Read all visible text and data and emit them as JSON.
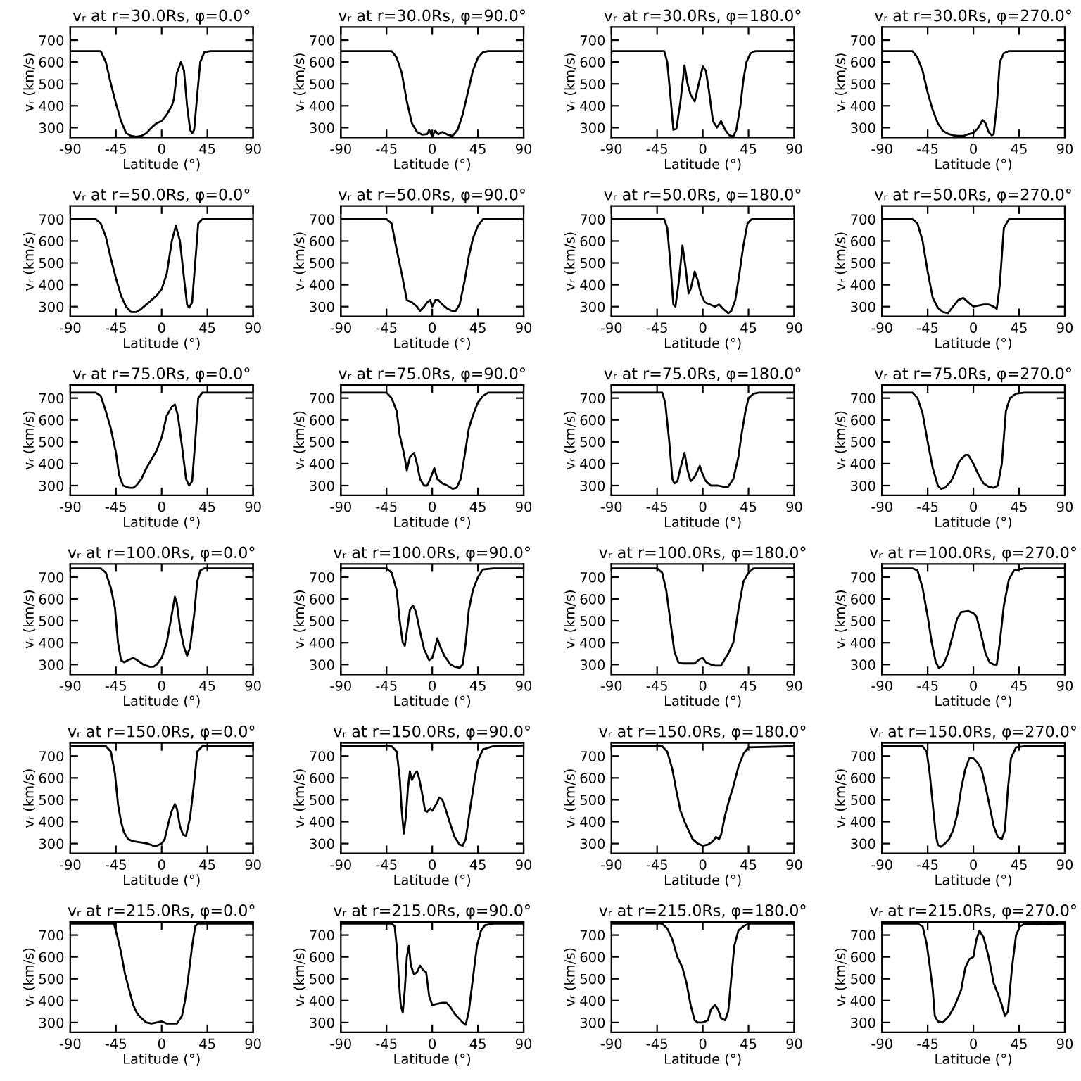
{
  "chart_data": [
    {
      "type": "line",
      "title": "vᵣ at r=30.0Rs, φ=0.0°",
      "xlabel": "Latitude (°)",
      "ylabel": "vᵣ (km/s)",
      "xlim": [
        -90,
        90
      ],
      "ylim": [
        255,
        760
      ],
      "xticks": [
        -90,
        -45,
        0,
        45,
        90
      ],
      "yticks": [
        300,
        400,
        500,
        600,
        700
      ],
      "x": [
        -90,
        -60,
        -55,
        -50,
        -45,
        -40,
        -35,
        -30,
        -25,
        -20,
        -15,
        -10,
        -5,
        0,
        5,
        10,
        12,
        15,
        19,
        22,
        25,
        28,
        30,
        32,
        35,
        38,
        42,
        48,
        90
      ],
      "series": [
        {
          "color": "#000000",
          "values": [
            650,
            650,
            600,
            500,
            410,
            330,
            275,
            262,
            258,
            262,
            275,
            300,
            320,
            330,
            360,
            400,
            430,
            550,
            600,
            560,
            400,
            290,
            275,
            290,
            450,
            600,
            645,
            650,
            650
          ]
        }
      ]
    },
    {
      "type": "line",
      "title": "vᵣ at r=30.0Rs, φ=90.0°",
      "xlabel": "Latitude (°)",
      "ylabel": "vᵣ (km/s)",
      "xlim": [
        -90,
        90
      ],
      "ylim": [
        255,
        760
      ],
      "xticks": [
        -90,
        -45,
        0,
        45,
        90
      ],
      "yticks": [
        300,
        400,
        500,
        600,
        700
      ],
      "x": [
        -90,
        -40,
        -35,
        -30,
        -25,
        -20,
        -15,
        -10,
        -5,
        -3,
        0,
        3,
        6,
        10,
        15,
        20,
        25,
        30,
        35,
        40,
        45,
        50,
        55,
        90
      ],
      "series": [
        {
          "color": "#000000",
          "values": [
            650,
            650,
            620,
            550,
            420,
            320,
            280,
            268,
            270,
            290,
            260,
            285,
            270,
            280,
            268,
            262,
            290,
            360,
            460,
            560,
            620,
            645,
            650,
            650
          ]
        }
      ]
    },
    {
      "type": "line",
      "title": "vᵣ at r=30.0Rs, φ=180.0°",
      "xlabel": "Latitude (°)",
      "ylabel": "vᵣ (km/s)",
      "xlim": [
        -90,
        90
      ],
      "ylim": [
        255,
        760
      ],
      "xticks": [
        -90,
        -45,
        0,
        45,
        90
      ],
      "yticks": [
        300,
        400,
        500,
        600,
        700
      ],
      "x": [
        -90,
        -38,
        -35,
        -32,
        -29,
        -26,
        -22,
        -18,
        -15,
        -12,
        -8,
        -5,
        0,
        3,
        6,
        10,
        14,
        18,
        22,
        26,
        30,
        33,
        37,
        40,
        43,
        47,
        52,
        90
      ],
      "series": [
        {
          "color": "#000000",
          "values": [
            650,
            650,
            600,
            450,
            290,
            295,
            420,
            585,
            500,
            450,
            420,
            480,
            580,
            560,
            470,
            330,
            300,
            330,
            290,
            265,
            260,
            290,
            400,
            520,
            600,
            640,
            650,
            650
          ]
        }
      ]
    },
    {
      "type": "line",
      "title": "vᵣ at r=30.0Rs, φ=270.0°",
      "xlabel": "Latitude (°)",
      "ylabel": "vᵣ (km/s)",
      "xlim": [
        -90,
        90
      ],
      "ylim": [
        255,
        760
      ],
      "xticks": [
        -90,
        -45,
        0,
        45,
        90
      ],
      "yticks": [
        300,
        400,
        500,
        600,
        700
      ],
      "x": [
        -90,
        -60,
        -55,
        -50,
        -45,
        -40,
        -35,
        -30,
        -25,
        -20,
        -15,
        -10,
        -5,
        0,
        5,
        9,
        12,
        15,
        18,
        20,
        23,
        26,
        30,
        35,
        90
      ],
      "series": [
        {
          "color": "#000000",
          "values": [
            650,
            650,
            620,
            560,
            460,
            380,
            320,
            285,
            272,
            265,
            262,
            262,
            270,
            275,
            300,
            335,
            320,
            280,
            265,
            270,
            400,
            600,
            640,
            650,
            650
          ]
        }
      ]
    },
    {
      "type": "line",
      "title": "vᵣ at r=50.0Rs, φ=0.0°",
      "xlabel": "Latitude (°)",
      "ylabel": "vᵣ (km/s)",
      "xlim": [
        -90,
        90
      ],
      "ylim": [
        255,
        760
      ],
      "xticks": [
        -90,
        -45,
        0,
        45,
        90
      ],
      "yticks": [
        300,
        400,
        500,
        600,
        700
      ],
      "x": [
        -90,
        -65,
        -60,
        -55,
        -50,
        -45,
        -40,
        -35,
        -30,
        -25,
        -20,
        -15,
        -10,
        -5,
        0,
        5,
        10,
        14,
        18,
        22,
        25,
        27,
        30,
        33,
        36,
        40,
        90
      ],
      "series": [
        {
          "color": "#000000",
          "values": [
            700,
            700,
            680,
            620,
            520,
            430,
            350,
            300,
            275,
            275,
            290,
            310,
            330,
            350,
            380,
            450,
            600,
            670,
            600,
            430,
            310,
            295,
            320,
            500,
            680,
            700,
            700
          ]
        }
      ]
    },
    {
      "type": "line",
      "title": "vᵣ at r=50.0Rs, φ=90.0°",
      "xlabel": "Latitude (°)",
      "ylabel": "vᵣ (km/s)",
      "xlim": [
        -90,
        90
      ],
      "ylim": [
        255,
        760
      ],
      "xticks": [
        -90,
        -45,
        0,
        45,
        90
      ],
      "yticks": [
        300,
        400,
        500,
        600,
        700
      ],
      "x": [
        -90,
        -45,
        -40,
        -35,
        -30,
        -25,
        -20,
        -15,
        -12,
        -8,
        -5,
        -2,
        0,
        3,
        6,
        10,
        15,
        20,
        23,
        27,
        32,
        36,
        40,
        45,
        50,
        90
      ],
      "series": [
        {
          "color": "#000000",
          "values": [
            700,
            700,
            680,
            560,
            450,
            330,
            320,
            300,
            280,
            300,
            320,
            330,
            300,
            330,
            330,
            310,
            290,
            280,
            280,
            310,
            420,
            530,
            610,
            670,
            700,
            700
          ]
        }
      ]
    },
    {
      "type": "line",
      "title": "vᵣ at r=50.0Rs, φ=180.0°",
      "xlabel": "Latitude (°)",
      "ylabel": "vᵣ (km/s)",
      "xlim": [
        -90,
        90
      ],
      "ylim": [
        255,
        760
      ],
      "xticks": [
        -90,
        -45,
        0,
        45,
        90
      ],
      "yticks": [
        300,
        400,
        500,
        600,
        700
      ],
      "x": [
        -90,
        -38,
        -35,
        -32,
        -29,
        -27,
        -24,
        -20,
        -17,
        -14,
        -12,
        -8,
        -5,
        -2,
        2,
        7,
        12,
        16,
        20,
        25,
        28,
        32,
        36,
        40,
        44,
        48,
        90
      ],
      "series": [
        {
          "color": "#000000",
          "values": [
            700,
            700,
            660,
            500,
            310,
            300,
            400,
            580,
            480,
            360,
            380,
            460,
            420,
            360,
            320,
            310,
            300,
            310,
            290,
            270,
            280,
            330,
            450,
            580,
            680,
            700,
            700
          ]
        }
      ]
    },
    {
      "type": "line",
      "title": "vᵣ at r=50.0Rs, φ=270.0°",
      "xlabel": "Latitude (°)",
      "ylabel": "vᵣ (km/s)",
      "xlim": [
        -90,
        90
      ],
      "ylim": [
        255,
        760
      ],
      "xticks": [
        -90,
        -45,
        0,
        45,
        90
      ],
      "yticks": [
        300,
        400,
        500,
        600,
        700
      ],
      "x": [
        -90,
        -60,
        -55,
        -50,
        -45,
        -40,
        -35,
        -30,
        -25,
        -20,
        -15,
        -10,
        -5,
        0,
        5,
        10,
        15,
        20,
        23,
        26,
        30,
        35,
        90
      ],
      "series": [
        {
          "color": "#000000",
          "values": [
            700,
            700,
            680,
            600,
            460,
            340,
            295,
            275,
            270,
            300,
            330,
            340,
            320,
            300,
            305,
            310,
            310,
            300,
            290,
            400,
            660,
            700,
            700
          ]
        }
      ]
    },
    {
      "type": "line",
      "title": "vᵣ at r=75.0Rs, φ=0.0°",
      "xlabel": "Latitude (°)",
      "ylabel": "vᵣ (km/s)",
      "xlim": [
        -90,
        90
      ],
      "ylim": [
        255,
        760
      ],
      "xticks": [
        -90,
        -45,
        0,
        45,
        90
      ],
      "yticks": [
        300,
        400,
        500,
        600,
        700
      ],
      "x": [
        -90,
        -65,
        -60,
        -55,
        -50,
        -45,
        -42,
        -38,
        -32,
        -28,
        -25,
        -20,
        -15,
        -10,
        -5,
        0,
        5,
        10,
        13,
        16,
        20,
        24,
        27,
        30,
        33,
        36,
        40,
        90
      ],
      "series": [
        {
          "color": "#000000",
          "values": [
            725,
            725,
            710,
            640,
            560,
            450,
            350,
            300,
            290,
            290,
            300,
            330,
            380,
            420,
            460,
            520,
            620,
            660,
            670,
            620,
            480,
            330,
            300,
            320,
            500,
            700,
            725,
            725
          ]
        }
      ]
    },
    {
      "type": "line",
      "title": "vᵣ at r=75.0Rs, φ=90.0°",
      "xlabel": "Latitude (°)",
      "ylabel": "vᵣ (km/s)",
      "xlim": [
        -90,
        90
      ],
      "ylim": [
        255,
        760
      ],
      "xticks": [
        -90,
        -45,
        0,
        45,
        90
      ],
      "yticks": [
        300,
        400,
        500,
        600,
        700
      ],
      "x": [
        -90,
        -45,
        -40,
        -35,
        -32,
        -28,
        -25,
        -22,
        -18,
        -15,
        -12,
        -8,
        -5,
        -2,
        2,
        5,
        10,
        15,
        20,
        24,
        28,
        32,
        36,
        40,
        45,
        50,
        55,
        90
      ],
      "series": [
        {
          "color": "#000000",
          "values": [
            725,
            725,
            700,
            640,
            530,
            450,
            370,
            430,
            450,
            400,
            330,
            300,
            300,
            330,
            380,
            330,
            310,
            300,
            285,
            290,
            330,
            440,
            560,
            620,
            680,
            710,
            725,
            725
          ]
        }
      ]
    },
    {
      "type": "line",
      "title": "vᵣ at r=75.0Rs, φ=180.0°",
      "xlabel": "Latitude (°)",
      "ylabel": "vᵣ (km/s)",
      "xlim": [
        -90,
        90
      ],
      "ylim": [
        255,
        760
      ],
      "xticks": [
        -90,
        -45,
        0,
        45,
        90
      ],
      "yticks": [
        300,
        400,
        500,
        600,
        700
      ],
      "x": [
        -90,
        -40,
        -37,
        -33,
        -30,
        -28,
        -25,
        -22,
        -18,
        -15,
        -12,
        -8,
        -5,
        -3,
        0,
        3,
        8,
        15,
        20,
        25,
        30,
        35,
        38,
        42,
        45,
        50,
        55,
        90
      ],
      "series": [
        {
          "color": "#000000",
          "values": [
            725,
            725,
            680,
            500,
            330,
            310,
            320,
            380,
            450,
            370,
            320,
            340,
            370,
            390,
            350,
            320,
            300,
            300,
            295,
            295,
            330,
            430,
            530,
            640,
            700,
            720,
            725,
            725
          ]
        }
      ]
    },
    {
      "type": "line",
      "title": "vᵣ at r=75.0Rs, φ=270.0°",
      "xlabel": "Latitude (°)",
      "ylabel": "vᵣ (km/s)",
      "xlim": [
        -90,
        90
      ],
      "ylim": [
        255,
        760
      ],
      "xticks": [
        -90,
        -45,
        0,
        45,
        90
      ],
      "yticks": [
        300,
        400,
        500,
        600,
        700
      ],
      "x": [
        -90,
        -60,
        -55,
        -50,
        -45,
        -40,
        -35,
        -32,
        -28,
        -22,
        -18,
        -14,
        -8,
        -5,
        0,
        5,
        10,
        15,
        20,
        24,
        28,
        32,
        36,
        42,
        50,
        90
      ],
      "series": [
        {
          "color": "#000000",
          "values": [
            725,
            725,
            700,
            630,
            500,
            380,
            300,
            285,
            290,
            320,
            360,
            410,
            440,
            440,
            400,
            350,
            310,
            295,
            290,
            300,
            400,
            640,
            700,
            720,
            725,
            725
          ]
        }
      ]
    },
    {
      "type": "line",
      "title": "vᵣ at r=100.0Rs, φ=0.0°",
      "xlabel": "Latitude (°)",
      "ylabel": "vᵣ (km/s)",
      "xlim": [
        -90,
        90
      ],
      "ylim": [
        255,
        760
      ],
      "xticks": [
        -90,
        -45,
        0,
        45,
        90
      ],
      "yticks": [
        300,
        400,
        500,
        600,
        700
      ],
      "x": [
        -90,
        -60,
        -55,
        -50,
        -46,
        -43,
        -40,
        -37,
        -33,
        -28,
        -24,
        -18,
        -12,
        -8,
        -5,
        0,
        5,
        10,
        13,
        15,
        18,
        22,
        25,
        28,
        32,
        35,
        38,
        42,
        90
      ],
      "series": [
        {
          "color": "#000000",
          "values": [
            740,
            740,
            720,
            650,
            560,
            400,
            320,
            310,
            320,
            330,
            320,
            300,
            290,
            290,
            300,
            330,
            400,
            530,
            610,
            580,
            470,
            380,
            340,
            380,
            530,
            680,
            730,
            740,
            740
          ]
        }
      ]
    },
    {
      "type": "line",
      "title": "vᵣ at r=100.0Rs, φ=90.0°",
      "xlabel": "Latitude (°)",
      "ylabel": "vᵣ (km/s)",
      "xlim": [
        -90,
        90
      ],
      "ylim": [
        255,
        760
      ],
      "xticks": [
        -90,
        -45,
        0,
        45,
        90
      ],
      "yticks": [
        300,
        400,
        500,
        600,
        700
      ],
      "x": [
        -90,
        -45,
        -40,
        -35,
        -32,
        -29,
        -27,
        -25,
        -22,
        -19,
        -16,
        -12,
        -8,
        -3,
        0,
        3,
        5,
        8,
        12,
        18,
        22,
        27,
        30,
        33,
        36,
        40,
        45,
        50,
        60,
        90
      ],
      "series": [
        {
          "color": "#000000",
          "values": [
            740,
            740,
            720,
            640,
            500,
            400,
            385,
            450,
            550,
            570,
            540,
            450,
            370,
            320,
            330,
            380,
            420,
            380,
            340,
            300,
            290,
            285,
            300,
            400,
            550,
            640,
            700,
            735,
            740,
            740
          ]
        }
      ]
    },
    {
      "type": "line",
      "title": "vᵣ at r=100.0Rs, φ=180.0°",
      "xlabel": "Latitude (°)",
      "ylabel": "vᵣ (km/s)",
      "xlim": [
        -90,
        90
      ],
      "ylim": [
        255,
        760
      ],
      "xticks": [
        -90,
        -45,
        0,
        45,
        90
      ],
      "yticks": [
        300,
        400,
        500,
        600,
        700
      ],
      "x": [
        -90,
        -45,
        -40,
        -36,
        -32,
        -28,
        -24,
        -20,
        -12,
        -8,
        -3,
        0,
        3,
        8,
        12,
        18,
        21,
        25,
        30,
        35,
        40,
        45,
        50,
        90
      ],
      "series": [
        {
          "color": "#000000",
          "values": [
            740,
            740,
            720,
            640,
            500,
            360,
            310,
            305,
            305,
            305,
            325,
            330,
            310,
            300,
            295,
            295,
            320,
            350,
            400,
            550,
            680,
            720,
            740,
            740
          ]
        }
      ]
    },
    {
      "type": "line",
      "title": "vᵣ at r=100.0Rs, φ=270.0°",
      "xlabel": "Latitude (°)",
      "ylabel": "vᵣ (km/s)",
      "xlim": [
        -90,
        90
      ],
      "ylim": [
        255,
        760
      ],
      "xticks": [
        -90,
        -45,
        0,
        45,
        90
      ],
      "yticks": [
        300,
        400,
        500,
        600,
        700
      ],
      "x": [
        -90,
        -60,
        -55,
        -50,
        -45,
        -41,
        -37,
        -34,
        -30,
        -25,
        -20,
        -16,
        -12,
        -5,
        0,
        3,
        7,
        12,
        16,
        20,
        23,
        26,
        30,
        35,
        40,
        50,
        90
      ],
      "series": [
        {
          "color": "#000000",
          "values": [
            740,
            740,
            730,
            650,
            520,
            400,
            310,
            285,
            295,
            350,
            440,
            510,
            540,
            545,
            535,
            520,
            450,
            350,
            310,
            300,
            300,
            400,
            570,
            690,
            730,
            740,
            740
          ]
        }
      ]
    },
    {
      "type": "line",
      "title": "vᵣ at r=150.0Rs, φ=0.0°",
      "xlabel": "Latitude (°)",
      "ylabel": "vᵣ (km/s)",
      "xlim": [
        -90,
        90
      ],
      "ylim": [
        255,
        760
      ],
      "xticks": [
        -90,
        -45,
        0,
        45,
        90
      ],
      "yticks": [
        300,
        400,
        500,
        600,
        700
      ],
      "x": [
        -90,
        -55,
        -50,
        -46,
        -43,
        -40,
        -37,
        -33,
        -28,
        -20,
        -14,
        -8,
        -5,
        0,
        3,
        7,
        10,
        13,
        15,
        18,
        21,
        24,
        28,
        32,
        35,
        40,
        90
      ],
      "series": [
        {
          "color": "#000000",
          "values": [
            745,
            745,
            720,
            620,
            480,
            400,
            350,
            320,
            310,
            305,
            300,
            290,
            290,
            300,
            320,
            400,
            450,
            480,
            460,
            380,
            340,
            335,
            420,
            580,
            720,
            745,
            745
          ]
        }
      ]
    },
    {
      "type": "line",
      "title": "vᵣ at r=150.0Rs, φ=90.0°",
      "xlabel": "Latitude (°)",
      "ylabel": "vᵣ (km/s)",
      "xlim": [
        -90,
        90
      ],
      "ylim": [
        255,
        760
      ],
      "xticks": [
        -90,
        -45,
        0,
        45,
        90
      ],
      "yticks": [
        300,
        400,
        500,
        600,
        700
      ],
      "x": [
        -90,
        -40,
        -35,
        -32,
        -30,
        -28,
        -26,
        -24,
        -22,
        -20,
        -17,
        -15,
        -13,
        -10,
        -7,
        -5,
        -2,
        0,
        4,
        7,
        10,
        13,
        17,
        22,
        27,
        30,
        33,
        37,
        42,
        45,
        50,
        60,
        90
      ],
      "series": [
        {
          "color": "#000000",
          "values": [
            745,
            745,
            720,
            600,
            450,
            345,
            420,
            550,
            630,
            590,
            620,
            630,
            600,
            530,
            450,
            445,
            460,
            450,
            480,
            510,
            500,
            460,
            400,
            330,
            295,
            290,
            320,
            450,
            600,
            680,
            730,
            745,
            748
          ]
        }
      ]
    },
    {
      "type": "line",
      "title": "vᵣ at r=150.0Rs, φ=180.0°",
      "xlabel": "Latitude (°)",
      "ylabel": "vᵣ (km/s)",
      "xlim": [
        -90,
        90
      ],
      "ylim": [
        255,
        760
      ],
      "xticks": [
        -90,
        -45,
        0,
        45,
        90
      ],
      "yticks": [
        300,
        400,
        500,
        600,
        700
      ],
      "x": [
        -90,
        -40,
        -35,
        -30,
        -26,
        -22,
        -18,
        -14,
        -10,
        -5,
        0,
        5,
        10,
        13,
        16,
        18,
        22,
        26,
        30,
        35,
        40,
        45,
        90
      ],
      "series": [
        {
          "color": "#000000",
          "values": [
            745,
            745,
            720,
            640,
            540,
            450,
            400,
            360,
            320,
            300,
            290,
            295,
            310,
            330,
            320,
            340,
            430,
            500,
            560,
            650,
            710,
            740,
            745
          ]
        }
      ]
    },
    {
      "type": "line",
      "title": "vᵣ at r=150.0Rs, φ=270.0°",
      "xlabel": "Latitude (°)",
      "ylabel": "vᵣ (km/s)",
      "xlim": [
        -90,
        90
      ],
      "ylim": [
        255,
        760
      ],
      "xticks": [
        -90,
        -45,
        0,
        45,
        90
      ],
      "yticks": [
        300,
        400,
        500,
        600,
        700
      ],
      "x": [
        -90,
        -50,
        -46,
        -43,
        -40,
        -37,
        -35,
        -32,
        -28,
        -24,
        -20,
        -16,
        -12,
        -8,
        -4,
        0,
        4,
        8,
        12,
        16,
        20,
        24,
        28,
        31,
        34,
        37,
        42,
        50,
        90
      ],
      "series": [
        {
          "color": "#000000",
          "values": [
            745,
            745,
            720,
            620,
            480,
            340,
            295,
            285,
            300,
            320,
            360,
            430,
            550,
            640,
            690,
            690,
            670,
            640,
            560,
            470,
            380,
            330,
            320,
            360,
            550,
            690,
            740,
            745,
            745
          ]
        }
      ]
    },
    {
      "type": "line",
      "title": "vᵣ at r=215.0Rs, φ=0.0°",
      "xlabel": "Latitude (°)",
      "ylabel": "vᵣ (km/s)",
      "xlim": [
        -90,
        90
      ],
      "ylim": [
        255,
        760
      ],
      "xticks": [
        -90,
        -45,
        0,
        45,
        90
      ],
      "yticks": [
        300,
        400,
        500,
        600,
        700
      ],
      "x": [
        -90,
        -47,
        -44,
        -40,
        -36,
        -32,
        -28,
        -24,
        -20,
        -15,
        -10,
        -5,
        0,
        5,
        15,
        20,
        23,
        26,
        30,
        33,
        36,
        90
      ],
      "series": [
        {
          "color": "#000000",
          "values": [
            752,
            752,
            700,
            620,
            520,
            450,
            380,
            340,
            320,
            300,
            295,
            300,
            305,
            295,
            295,
            330,
            400,
            500,
            650,
            740,
            752,
            752
          ]
        }
      ]
    },
    {
      "type": "line",
      "title": "vᵣ at r=215.0Rs, φ=90.0°",
      "xlabel": "Latitude (°)",
      "ylabel": "vᵣ (km/s)",
      "xlim": [
        -90,
        90
      ],
      "ylim": [
        255,
        760
      ],
      "xticks": [
        -90,
        -45,
        0,
        45,
        90
      ],
      "yticks": [
        300,
        400,
        500,
        600,
        700
      ],
      "x": [
        -90,
        -40,
        -37,
        -35,
        -33,
        -31,
        -29,
        -27,
        -25,
        -23,
        -21,
        -18,
        -15,
        -12,
        -9,
        -6,
        -3,
        0,
        5,
        10,
        14,
        18,
        22,
        26,
        30,
        33,
        36,
        40,
        44,
        48,
        52,
        60,
        90
      ],
      "series": [
        {
          "color": "#000000",
          "values": [
            752,
            752,
            740,
            650,
            500,
            380,
            345,
            450,
            600,
            650,
            560,
            520,
            530,
            560,
            540,
            530,
            420,
            380,
            385,
            390,
            390,
            370,
            340,
            320,
            300,
            290,
            350,
            500,
            650,
            720,
            745,
            752,
            752
          ]
        }
      ]
    },
    {
      "type": "line",
      "title": "vᵣ at r=215.0Rs, φ=180.0°",
      "xlabel": "Latitude (°)",
      "ylabel": "vᵣ (km/s)",
      "xlim": [
        -90,
        90
      ],
      "ylim": [
        255,
        760
      ],
      "xticks": [
        -90,
        -45,
        0,
        45,
        90
      ],
      "yticks": [
        300,
        400,
        500,
        600,
        700
      ],
      "x": [
        -90,
        -40,
        -35,
        -30,
        -25,
        -20,
        -16,
        -12,
        -8,
        -5,
        0,
        5,
        8,
        12,
        15,
        18,
        22,
        25,
        28,
        31,
        35,
        40,
        45,
        90
      ],
      "series": [
        {
          "color": "#000000",
          "values": [
            752,
            752,
            730,
            680,
            600,
            550,
            480,
            380,
            310,
            300,
            300,
            310,
            360,
            380,
            360,
            320,
            310,
            350,
            500,
            650,
            720,
            740,
            752,
            752
          ]
        }
      ]
    },
    {
      "type": "line",
      "title": "vᵣ at r=215.0Rs, φ=270.0°",
      "xlabel": "Latitude (°)",
      "ylabel": "vᵣ (km/s)",
      "xlim": [
        -90,
        90
      ],
      "ylim": [
        255,
        760
      ],
      "xticks": [
        -90,
        -45,
        0,
        45,
        90
      ],
      "yticks": [
        300,
        400,
        500,
        600,
        700
      ],
      "x": [
        -90,
        -55,
        -50,
        -46,
        -43,
        -40,
        -38,
        -35,
        -30,
        -24,
        -18,
        -12,
        -8,
        -4,
        0,
        3,
        6,
        10,
        15,
        20,
        25,
        28,
        31,
        34,
        38,
        42,
        46,
        50,
        90
      ],
      "series": [
        {
          "color": "#000000",
          "values": [
            752,
            752,
            740,
            660,
            560,
            450,
            330,
            305,
            300,
            330,
            380,
            450,
            550,
            590,
            600,
            680,
            720,
            690,
            600,
            480,
            420,
            380,
            330,
            350,
            550,
            700,
            740,
            750,
            752
          ]
        }
      ]
    }
  ]
}
